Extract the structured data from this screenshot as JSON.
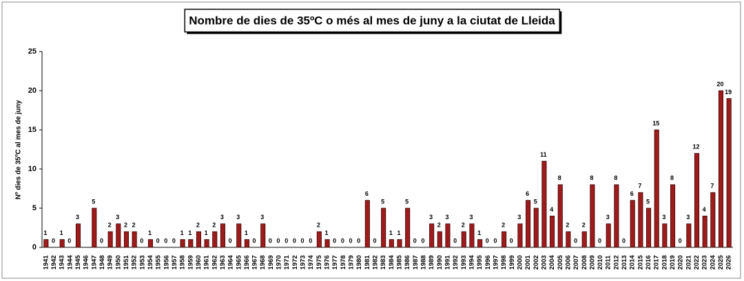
{
  "chart_data": {
    "type": "bar",
    "title": "Nombre de dies de 35ºC o més al mes de juny a la ciutat de Lleida",
    "y_label": "Nº dies de 35ºC al mes de juny",
    "categories": [
      "1941",
      "1942",
      "1943",
      "1944",
      "1945",
      "1946",
      "1947",
      "1948",
      "1949",
      "1950",
      "1951",
      "1952",
      "1953",
      "1954",
      "1955",
      "1956",
      "1957",
      "1958",
      "1959",
      "1960",
      "1961",
      "1962",
      "1963",
      "1964",
      "1965",
      "1966",
      "1967",
      "1968",
      "1969",
      "1970",
      "1971",
      "1972",
      "1973",
      "1974",
      "1975",
      "1976",
      "1977",
      "1978",
      "1979",
      "1980",
      "1981",
      "1982",
      "1983",
      "1984",
      "1985",
      "1986",
      "1987",
      "1988",
      "1989",
      "1990",
      "1991",
      "1992",
      "1993",
      "1994",
      "1995",
      "1996",
      "1997",
      "1998",
      "1999",
      "2000",
      "2001",
      "2002",
      "2003",
      "2004",
      "2005",
      "2006",
      "2007",
      "2008",
      "2009",
      "2010",
      "2011",
      "2012",
      "2013",
      "2014",
      "2015",
      "2016",
      "2017",
      "2018",
      "2019",
      "2020",
      "2021",
      "2022",
      "2023",
      "2024",
      "2025",
      "2026"
    ],
    "values": [
      1,
      0,
      1,
      0,
      3,
      null,
      5,
      0,
      2,
      3,
      2,
      2,
      0,
      1,
      0,
      0,
      0,
      1,
      1,
      2,
      1,
      2,
      3,
      0,
      3,
      1,
      0,
      3,
      0,
      0,
      0,
      0,
      0,
      0,
      2,
      1,
      0,
      0,
      0,
      0,
      6,
      0,
      5,
      1,
      1,
      5,
      0,
      0,
      3,
      2,
      3,
      0,
      2,
      3,
      1,
      0,
      0,
      2,
      0,
      3,
      6,
      5,
      11,
      4,
      8,
      2,
      0,
      2,
      8,
      0,
      3,
      8,
      0,
      6,
      7,
      5,
      15,
      3,
      8,
      0,
      3,
      12,
      4,
      7,
      20,
      19
    ],
    "color": "#9e1b1b",
    "ylim": [
      0,
      25
    ],
    "yticks": [
      0,
      5,
      10,
      15,
      20,
      25
    ],
    "grid": false
  }
}
